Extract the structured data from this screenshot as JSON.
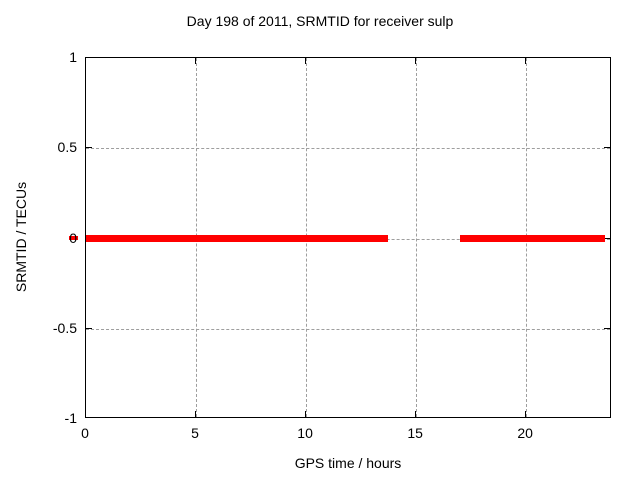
{
  "chart_data": {
    "type": "line",
    "title": "Day 198 of 2011, SRMTID for receiver sulp",
    "xlabel": "GPS time / hours",
    "ylabel": "SRMTID / TECUs",
    "xlim": [
      0,
      23.9
    ],
    "ylim": [
      -1,
      1
    ],
    "x_tick_values": [
      0,
      5,
      10,
      15,
      20
    ],
    "x_tick_labels": [
      "0",
      "5",
      "10",
      "15",
      "20"
    ],
    "y_tick_values": [
      1,
      0.5,
      0,
      -0.5,
      -1
    ],
    "y_tick_labels": [
      "1",
      "0.5",
      "0",
      "-0.5",
      "-1"
    ],
    "grid": true,
    "legend": "none",
    "series": [
      {
        "name": "SRMTID",
        "style": "thick horizontal line at y=0 with data gap",
        "segments": [
          {
            "x_start": 0,
            "x_end": 13.7,
            "y": 0
          },
          {
            "x_start": 17.0,
            "x_end": 23.6,
            "y": 0
          }
        ]
      }
    ],
    "colors": {
      "series": "#ff0000",
      "grid": "#9e9e9e",
      "axis": "#000000",
      "background": "#ffffff",
      "text": "#000000"
    }
  }
}
